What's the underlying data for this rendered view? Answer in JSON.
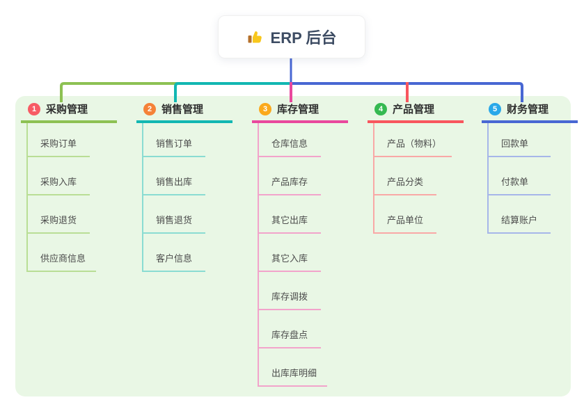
{
  "root": {
    "title": "ERP 后台",
    "icon": "thumbs-up-icon"
  },
  "colors": {
    "panel_background": "#e9f7e5",
    "trunk_line": "#4867d3"
  },
  "branches": [
    {
      "key": "purchase",
      "badge": "1",
      "label": "采购管理",
      "badge_color": "#f75b64",
      "line_color": "#8dc153",
      "item_line_color": "#b9de95",
      "items": [
        "采购订单",
        "采购入库",
        "采购退货",
        "供应商信息"
      ]
    },
    {
      "key": "sales",
      "badge": "2",
      "label": "销售管理",
      "badge_color": "#f58238",
      "line_color": "#12b7b2",
      "item_line_color": "#8adcd2",
      "items": [
        "销售订单",
        "销售出库",
        "销售退货",
        "客户信息"
      ]
    },
    {
      "key": "inventory",
      "badge": "3",
      "label": "库存管理",
      "badge_color": "#fba91c",
      "line_color": "#e9489d",
      "item_line_color": "#f2a3cb",
      "items": [
        "仓库信息",
        "产品库存",
        "其它出库",
        "其它入库",
        "库存调拨",
        "库存盘点",
        "出库库明细"
      ]
    },
    {
      "key": "product",
      "badge": "4",
      "label": "产品管理",
      "badge_color": "#35b951",
      "line_color": "#f8565e",
      "item_line_color": "#f9a8a6",
      "items": [
        "产品（物料）",
        "产品分类",
        "产品单位"
      ]
    },
    {
      "key": "finance",
      "badge": "5",
      "label": "财务管理",
      "badge_color": "#29a8e9",
      "line_color": "#4867d3",
      "item_line_color": "#a6b6e9",
      "items": [
        "回款单",
        "付款单",
        "结算账户"
      ]
    }
  ]
}
